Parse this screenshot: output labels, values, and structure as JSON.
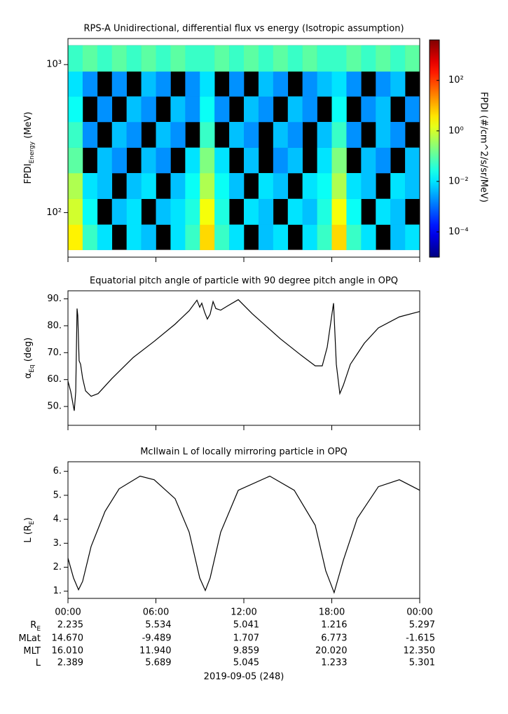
{
  "chart_data": [
    {
      "type": "heatmap",
      "title": "RPS-A Unidirectional, differential flux vs energy (Isotropic assumption)",
      "y_label": {
        "text": "FPDI",
        "sub": "Energy",
        "after": " (MeV)"
      },
      "xlim": [
        0,
        24
      ],
      "xticks": [
        0,
        6,
        12,
        18,
        24
      ],
      "ylim": [
        50,
        1500
      ],
      "log_y": true,
      "yticks": [
        {
          "value": 100,
          "label": "10²"
        },
        {
          "value": 1000,
          "label": "10³"
        }
      ],
      "x": [
        0,
        1,
        2,
        3,
        4,
        5,
        6,
        7,
        8,
        9,
        10,
        11,
        12,
        13,
        14,
        15,
        16,
        17,
        18,
        19,
        20,
        21,
        22,
        23,
        24
      ],
      "y_bins": [
        56,
        83,
        124,
        185,
        275,
        410,
        610,
        900,
        1350
      ],
      "z": [
        [
          3,
          0.05,
          0.01,
          null,
          0.01,
          0.005,
          null,
          0.01,
          0.05,
          5,
          0.05,
          0.01,
          null,
          0.005,
          0.01,
          null,
          0.01,
          0.05,
          5,
          0.05,
          0.01,
          null,
          0.005,
          0.01
        ],
        [
          1,
          0.02,
          null,
          0.005,
          0.01,
          null,
          0.005,
          0.01,
          0.03,
          2,
          0.03,
          null,
          0.01,
          0.005,
          null,
          0.01,
          0.005,
          0.03,
          2,
          0.02,
          null,
          0.01,
          0.005,
          null
        ],
        [
          0.5,
          0.01,
          0.005,
          null,
          0.005,
          0.01,
          null,
          0.005,
          0.02,
          0.5,
          0.02,
          0.005,
          null,
          0.01,
          0.005,
          null,
          0.01,
          0.02,
          0.5,
          0.01,
          0.005,
          null,
          0.01,
          0.005
        ],
        [
          0.1,
          null,
          0.005,
          0.002,
          null,
          0.005,
          0.002,
          null,
          0.01,
          0.2,
          0.01,
          null,
          0.005,
          null,
          0.002,
          0.005,
          null,
          0.01,
          0.2,
          null,
          0.005,
          0.002,
          null,
          0.005
        ],
        [
          0.05,
          0.002,
          null,
          0.005,
          0.002,
          null,
          0.005,
          0.002,
          null,
          0.05,
          null,
          0.005,
          0.002,
          null,
          0.005,
          0.002,
          null,
          0.005,
          0.05,
          0.002,
          null,
          0.005,
          0.002,
          null
        ],
        [
          0.02,
          null,
          0.002,
          null,
          0.005,
          0.002,
          null,
          0.005,
          0.002,
          0.02,
          0.002,
          null,
          0.005,
          0.002,
          null,
          0.005,
          0.002,
          null,
          0.02,
          null,
          0.002,
          0.005,
          null,
          0.002
        ],
        [
          0.01,
          0.002,
          null,
          0.002,
          null,
          0.005,
          0.002,
          null,
          0.002,
          0.01,
          null,
          0.002,
          null,
          0.005,
          0.002,
          null,
          0.002,
          0.005,
          0.01,
          0.002,
          null,
          0.002,
          0.005,
          null
        ],
        [
          0.05,
          0.1,
          0.05,
          0.1,
          0.05,
          0.1,
          0.05,
          0.1,
          0.05,
          0.05,
          0.1,
          0.05,
          0.1,
          0.05,
          0.1,
          0.05,
          0.1,
          0.05,
          0.05,
          0.1,
          0.05,
          0.1,
          0.05,
          0.1
        ]
      ],
      "colorbar": {
        "label": "FPDI (#/cm^2/s/sr/MeV)",
        "zlim": [
          1e-05,
          4000
        ],
        "log": true,
        "ticks": [
          {
            "value": 0.0001,
            "label": "10⁻⁴"
          },
          {
            "value": 0.01,
            "label": "10⁻²"
          },
          {
            "value": 1,
            "label": "10⁰"
          },
          {
            "value": 100,
            "label": "10²"
          }
        ]
      }
    },
    {
      "type": "line",
      "title": "Equatorial pitch angle of particle with 90 degree pitch angle in OPQ",
      "y_label": {
        "text": "α",
        "sub": "Eq",
        "after": " (deg)"
      },
      "xlim": [
        0,
        24
      ],
      "xticks": [
        0,
        6,
        12,
        18,
        24
      ],
      "ylim": [
        43,
        93
      ],
      "yticks": [
        {
          "value": 50,
          "label": "50."
        },
        {
          "value": 60,
          "label": "60."
        },
        {
          "value": 70,
          "label": "70."
        },
        {
          "value": 80,
          "label": "80."
        },
        {
          "value": 90,
          "label": "90."
        }
      ],
      "color": "#000000",
      "x": [
        0,
        0.19,
        0.38,
        0.43,
        0.53,
        0.62,
        0.67,
        0.76,
        0.86,
        1.0,
        1.2,
        1.58,
        2.06,
        3.0,
        4.45,
        5.88,
        7.31,
        8.27,
        8.8,
        8.99,
        9.13,
        9.32,
        9.51,
        9.7,
        9.9,
        10.09,
        10.42,
        10.9,
        11.62,
        12.57,
        14.48,
        15.92,
        16.87,
        17.35,
        17.69,
        17.93,
        18.12,
        18.16,
        18.31,
        18.55,
        18.79,
        19.27,
        20.22,
        21.18,
        22.61,
        24
      ],
      "values": [
        59.4,
        55.5,
        49.8,
        48.4,
        55.5,
        86.4,
        83.8,
        67,
        65.7,
        60.5,
        55.8,
        53.8,
        54.8,
        60.4,
        68.2,
        74.2,
        80.6,
        85.6,
        89.5,
        86.9,
        88.4,
        85.1,
        82.5,
        84.3,
        89,
        86.4,
        85.8,
        87.4,
        89.7,
        84.5,
        75.2,
        69,
        65.1,
        65.1,
        72.1,
        81.2,
        88.4,
        83.8,
        65.7,
        54.8,
        57.9,
        65.7,
        73.5,
        79.2,
        83.3,
        85.3
      ]
    },
    {
      "type": "line",
      "title": "McIlwain L of locally mirroring particle in OPQ",
      "y_label": {
        "text": "L (R",
        "sub": "E",
        "after": ")"
      },
      "xlim": [
        0,
        24
      ],
      "xticks": [
        {
          "value": 0,
          "label": "00:00"
        },
        {
          "value": 6,
          "label": "06:00"
        },
        {
          "value": 12,
          "label": "12:00"
        },
        {
          "value": 18,
          "label": "18:00"
        },
        {
          "value": 24,
          "label": "00:00"
        }
      ],
      "ylim": [
        0.7,
        6.4
      ],
      "yticks": [
        {
          "value": 1,
          "label": "1."
        },
        {
          "value": 2,
          "label": "2."
        },
        {
          "value": 3,
          "label": "3."
        },
        {
          "value": 4,
          "label": "4."
        },
        {
          "value": 5,
          "label": "5."
        },
        {
          "value": 6,
          "label": "6."
        }
      ],
      "color": "#000000",
      "x": [
        0,
        0.38,
        0.72,
        1.0,
        1.58,
        2.53,
        3.49,
        4.92,
        5.88,
        7.31,
        8.27,
        8.99,
        9.37,
        9.7,
        10.42,
        11.62,
        13.77,
        15.44,
        16.87,
        17.59,
        18.16,
        18.79,
        19.74,
        21.18,
        22.61,
        24
      ],
      "values": [
        2.38,
        1.55,
        1.06,
        1.41,
        2.87,
        4.33,
        5.27,
        5.8,
        5.65,
        4.86,
        3.46,
        1.55,
        1.03,
        1.55,
        3.46,
        5.21,
        5.8,
        5.21,
        3.75,
        1.85,
        0.94,
        2.29,
        4.04,
        5.36,
        5.65,
        5.21
      ]
    }
  ],
  "ephemeris": {
    "rows": [
      {
        "label": "R",
        "label_sub": "E",
        "values": [
          "2.235",
          "5.534",
          "5.041",
          "1.216",
          "5.297"
        ]
      },
      {
        "label": "MLat",
        "values": [
          "14.670",
          "-9.489",
          "1.707",
          "6.773",
          "-1.615"
        ]
      },
      {
        "label": "MLT",
        "values": [
          "16.010",
          "11.940",
          "9.859",
          "20.020",
          "12.350"
        ]
      },
      {
        "label": "L",
        "values": [
          "2.389",
          "5.689",
          "5.045",
          "1.233",
          "5.301"
        ]
      }
    ],
    "date": "2019-09-05 (248)"
  }
}
